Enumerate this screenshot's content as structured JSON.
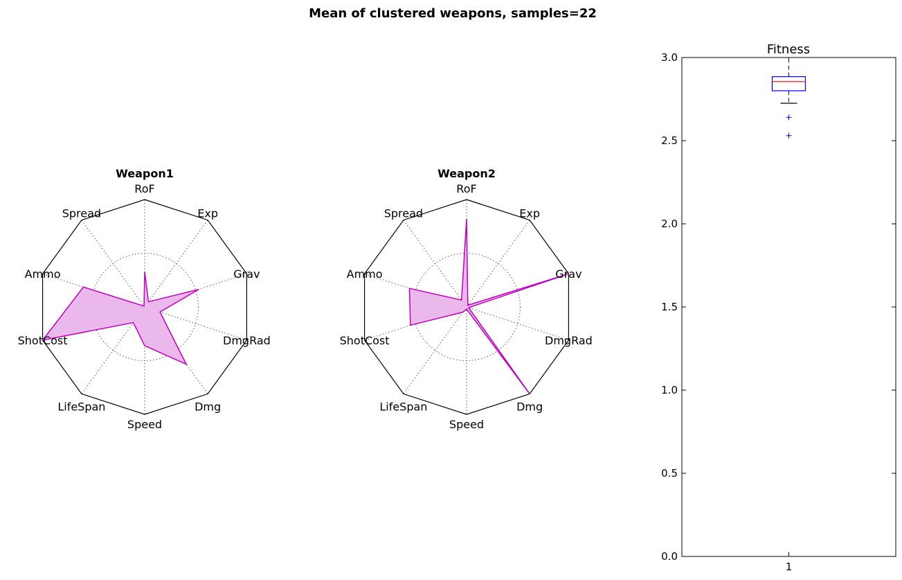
{
  "figure": {
    "title": "Mean of clustered weapons, samples=22"
  },
  "chart_data": [
    {
      "type": "radar",
      "title": "Weapon1",
      "axes": [
        "RoF",
        "Exp",
        "Grav",
        "DmgRad",
        "Dmg",
        "Speed",
        "LifeSpan",
        "ShotCost",
        "Ammo",
        "Spread"
      ],
      "values": [
        0.33,
        0.06,
        0.53,
        0.15,
        0.66,
        0.36,
        0.18,
        1.0,
        0.6,
        0.01
      ],
      "rlim": [
        0,
        1
      ],
      "grid_rings": [
        0.5,
        1.0
      ],
      "colors": {
        "line": "#bf00bf",
        "fill": "#ebb8eb"
      }
    },
    {
      "type": "radar",
      "title": "Weapon2",
      "axes": [
        "RoF",
        "Exp",
        "Grav",
        "DmgRad",
        "Dmg",
        "Speed",
        "LifeSpan",
        "ShotCost",
        "Ammo",
        "Spread"
      ],
      "values": [
        0.82,
        0.02,
        1.0,
        0.02,
        1.0,
        0.02,
        0.06,
        0.55,
        0.56,
        0.08
      ],
      "rlim": [
        0,
        1
      ],
      "grid_rings": [
        0.5,
        1.0
      ],
      "colors": {
        "line": "#bf00bf",
        "fill": "#ebb8eb"
      }
    },
    {
      "type": "boxplot",
      "title": "Fitness",
      "categories": [
        "1"
      ],
      "box": {
        "q1": 2.8,
        "median": 2.855,
        "q3": 2.885,
        "whisker_low": 2.725,
        "whisker_high": 3.0
      },
      "outliers": [
        2.64,
        2.53
      ],
      "ylim": [
        0.0,
        3.0
      ],
      "yticks": [
        "0.0",
        "0.5",
        "1.0",
        "1.5",
        "2.0",
        "2.5",
        "3.0"
      ],
      "xticks": [
        "1"
      ],
      "colors": {
        "box": "#0000ff",
        "median": "#ff0000",
        "whisker_cap": "#000000",
        "outlier": "#0000ff"
      }
    }
  ]
}
